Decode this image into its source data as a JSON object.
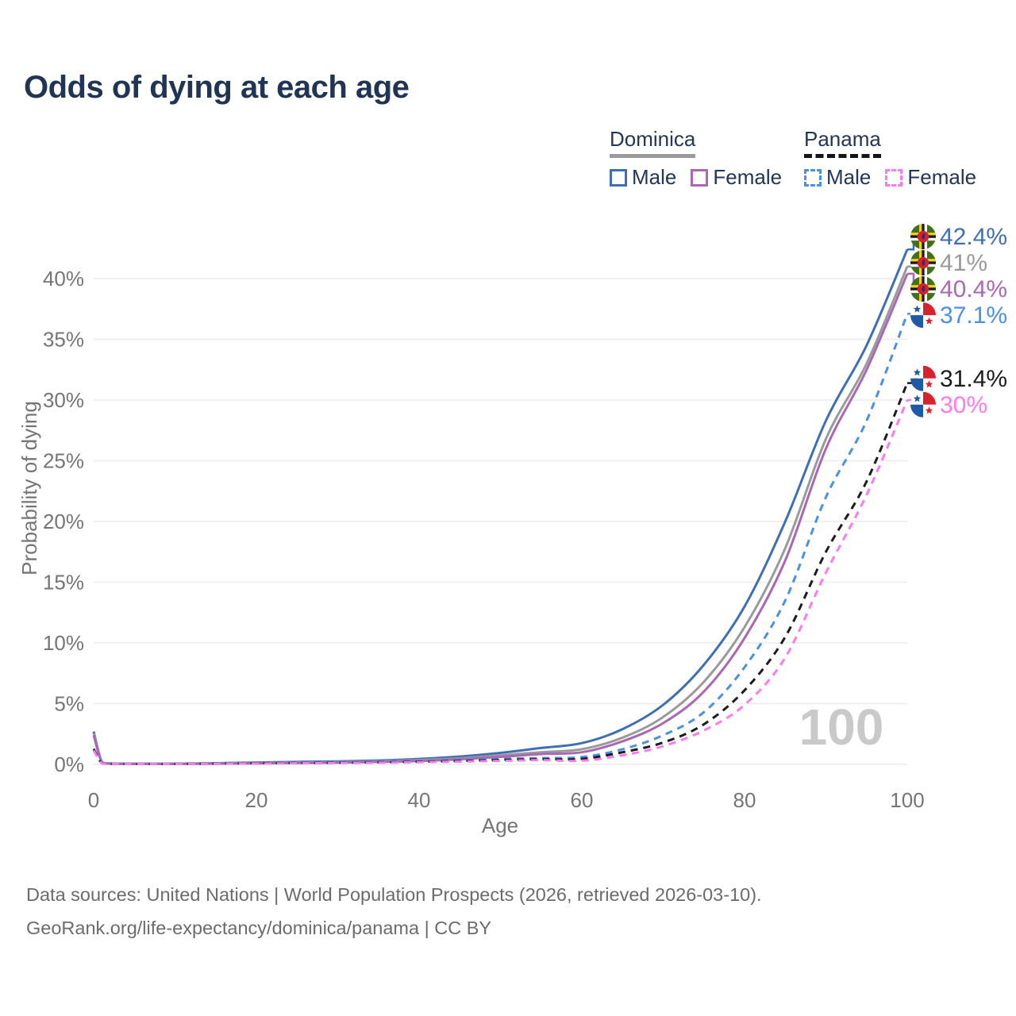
{
  "title": "Odds of dying at each age",
  "legend": {
    "dominica": {
      "label": "Dominica",
      "male": "Male",
      "female": "Female"
    },
    "panama": {
      "label": "Panama",
      "male": "Male",
      "female": "Female"
    }
  },
  "watermark": "100",
  "footer": {
    "line1": "Data sources: United Nations | World Population Prospects (2026, retrieved 2026-03-10).",
    "line2": "GeoRank.org/life-expectancy/dominica/panama | CC BY"
  },
  "colors": {
    "title_text": "#203556",
    "legend_text": "#22365a",
    "axis_text": "#757575",
    "grid_line": "#ececec",
    "watermark_text": "#c9c9c9",
    "footer_text": "#6b6b6b",
    "dominica_rule": "#9b9b9b",
    "panama_rule": "#151515"
  },
  "chart_data": {
    "type": "line",
    "title": "Odds of dying at each age",
    "xlabel": "Age",
    "ylabel": "Probability of dying",
    "xlim": [
      0,
      100
    ],
    "ylim": [
      0,
      44
    ],
    "grid": true,
    "legend_position": "top-right",
    "x_ages": [
      0,
      1,
      2,
      5,
      10,
      15,
      20,
      25,
      30,
      35,
      40,
      45,
      50,
      55,
      60,
      65,
      70,
      75,
      80,
      85,
      90,
      95,
      100
    ],
    "yticks": [
      {
        "value": 0,
        "label": "0%"
      },
      {
        "value": 5,
        "label": "5%"
      },
      {
        "value": 10,
        "label": "10%"
      },
      {
        "value": 15,
        "label": "15%"
      },
      {
        "value": 20,
        "label": "20%"
      },
      {
        "value": 25,
        "label": "25%"
      },
      {
        "value": 30,
        "label": "30%"
      },
      {
        "value": 35,
        "label": "35%"
      },
      {
        "value": 40,
        "label": "40%"
      }
    ],
    "xticks": [
      {
        "value": 0,
        "label": "0"
      },
      {
        "value": 20,
        "label": "20"
      },
      {
        "value": 40,
        "label": "40"
      },
      {
        "value": 60,
        "label": "60"
      },
      {
        "value": 80,
        "label": "80"
      },
      {
        "value": 100,
        "label": "100"
      }
    ],
    "series": [
      {
        "id": "dominica-male",
        "country": "Dominica",
        "sex": "male",
        "style": "solid",
        "color": "#3e6fb5",
        "flag": "dominica",
        "end_value": 42.4,
        "end_label": "42.4%",
        "values": [
          2.7,
          0.2,
          0.08,
          0.06,
          0.06,
          0.1,
          0.16,
          0.2,
          0.25,
          0.32,
          0.45,
          0.65,
          0.95,
          1.35,
          1.75,
          2.9,
          4.9,
          8.2,
          13.0,
          20.0,
          28.3,
          34.5,
          42.4
        ]
      },
      {
        "id": "dominica-both",
        "country": "Dominica",
        "sex": "both",
        "style": "solid",
        "color": "#9a9a9a",
        "flag": "dominica",
        "end_value": 41,
        "end_label": "41%",
        "values": [
          2.55,
          0.18,
          0.07,
          0.05,
          0.05,
          0.08,
          0.12,
          0.15,
          0.19,
          0.25,
          0.35,
          0.5,
          0.75,
          1.0,
          1.25,
          2.2,
          3.9,
          6.8,
          11.3,
          17.8,
          26.8,
          33.0,
          41.0
        ]
      },
      {
        "id": "dominica-female",
        "country": "Dominica",
        "sex": "female",
        "style": "solid",
        "color": "#a968b5",
        "flag": "dominica",
        "end_value": 40.4,
        "end_label": "40.4%",
        "values": [
          2.4,
          0.17,
          0.06,
          0.04,
          0.04,
          0.06,
          0.09,
          0.11,
          0.15,
          0.2,
          0.28,
          0.42,
          0.62,
          0.85,
          1.0,
          1.9,
          3.4,
          6.0,
          10.4,
          16.8,
          26.0,
          32.5,
          40.4
        ]
      },
      {
        "id": "panama-male",
        "country": "Panama",
        "sex": "male",
        "style": "dashed",
        "color": "#4a90e8",
        "flag": "panama",
        "end_value": 37.1,
        "end_label": "37.1%",
        "values": [
          1.3,
          0.1,
          0.05,
          0.04,
          0.04,
          0.07,
          0.11,
          0.14,
          0.17,
          0.21,
          0.27,
          0.35,
          0.45,
          0.52,
          0.6,
          1.25,
          2.4,
          4.3,
          8.0,
          13.5,
          22.0,
          28.3,
          37.1
        ]
      },
      {
        "id": "panama-both",
        "country": "Panama",
        "sex": "both",
        "style": "dashed",
        "color": "#1c1c1c",
        "flag": "panama",
        "end_value": 31.4,
        "end_label": "31.4%",
        "values": [
          1.25,
          0.09,
          0.04,
          0.035,
          0.04,
          0.06,
          0.09,
          0.11,
          0.13,
          0.17,
          0.22,
          0.28,
          0.36,
          0.42,
          0.45,
          1.0,
          1.8,
          3.3,
          6.1,
          10.5,
          17.5,
          23.3,
          31.4
        ]
      },
      {
        "id": "panama-female",
        "country": "Panama",
        "sex": "female",
        "style": "dashed",
        "color": "#fb7bef",
        "flag": "panama",
        "end_value": 30,
        "end_label": "30%",
        "values": [
          1.15,
          0.08,
          0.04,
          0.03,
          0.03,
          0.05,
          0.07,
          0.09,
          0.11,
          0.14,
          0.18,
          0.23,
          0.29,
          0.35,
          0.3,
          0.75,
          1.5,
          2.8,
          4.9,
          8.8,
          15.8,
          22.2,
          30.0
        ]
      }
    ]
  }
}
